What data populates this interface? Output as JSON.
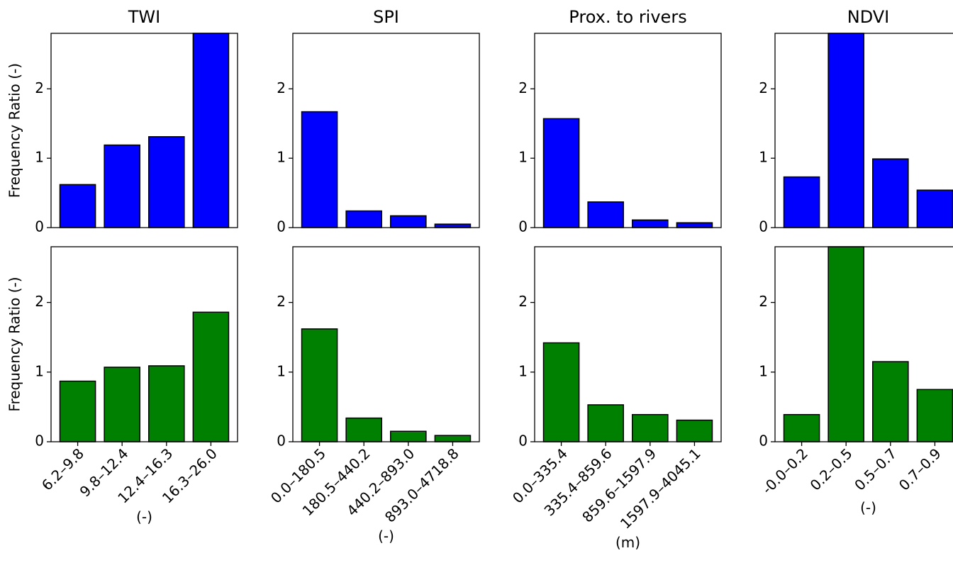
{
  "chart_data": [
    {
      "type": "bar",
      "title": "TWI",
      "ylabel": "Frequency Ratio (-)",
      "values": [
        0.62,
        1.19,
        1.31,
        2.8
      ],
      "color": "#0000ff",
      "ylim": [
        0,
        2.8
      ],
      "yticks": [
        0,
        1,
        2
      ]
    },
    {
      "type": "bar",
      "title": "SPI",
      "values": [
        1.67,
        0.24,
        0.17,
        0.05
      ],
      "color": "#0000ff",
      "ylim": [
        0,
        2.8
      ],
      "yticks": [
        0,
        1,
        2
      ]
    },
    {
      "type": "bar",
      "title": "Prox. to rivers",
      "values": [
        1.57,
        0.37,
        0.11,
        0.07
      ],
      "color": "#0000ff",
      "ylim": [
        0,
        2.8
      ],
      "yticks": [
        0,
        1,
        2
      ]
    },
    {
      "type": "bar",
      "title": "NDVI",
      "values": [
        0.73,
        2.8,
        0.99,
        0.54
      ],
      "color": "#0000ff",
      "ylim": [
        0,
        2.8
      ],
      "yticks": [
        0,
        1,
        2
      ]
    },
    {
      "type": "bar",
      "ylabel": "Frequency Ratio (-)",
      "xlabel": "(-)",
      "categories": [
        "6.2–9.8",
        "9.8–12.4",
        "12.4–16.3",
        "16.3–26.0"
      ],
      "values": [
        0.87,
        1.07,
        1.09,
        1.86
      ],
      "color": "#008000",
      "ylim": [
        0,
        2.8
      ],
      "yticks": [
        0,
        1,
        2
      ]
    },
    {
      "type": "bar",
      "xlabel": "(-)",
      "categories": [
        "0.0–180.5",
        "180.5–440.2",
        "440.2–893.0",
        "893.0–4718.8"
      ],
      "values": [
        1.62,
        0.34,
        0.15,
        0.09
      ],
      "color": "#008000",
      "ylim": [
        0,
        2.8
      ],
      "yticks": [
        0,
        1,
        2
      ]
    },
    {
      "type": "bar",
      "xlabel": "(m)",
      "categories": [
        "0.0–335.4",
        "335.4–859.6",
        "859.6–1597.9",
        "1597.9–4045.1"
      ],
      "values": [
        1.42,
        0.53,
        0.39,
        0.31
      ],
      "color": "#008000",
      "ylim": [
        0,
        2.8
      ],
      "yticks": [
        0,
        1,
        2
      ]
    },
    {
      "type": "bar",
      "xlabel": "(-)",
      "categories": [
        "-0.0–0.2",
        "0.2–0.5",
        "0.5–0.7",
        "0.7–0.9"
      ],
      "values": [
        0.39,
        2.8,
        1.15,
        0.75
      ],
      "color": "#008000",
      "ylim": [
        0,
        2.8
      ],
      "yticks": [
        0,
        1,
        2
      ]
    }
  ]
}
